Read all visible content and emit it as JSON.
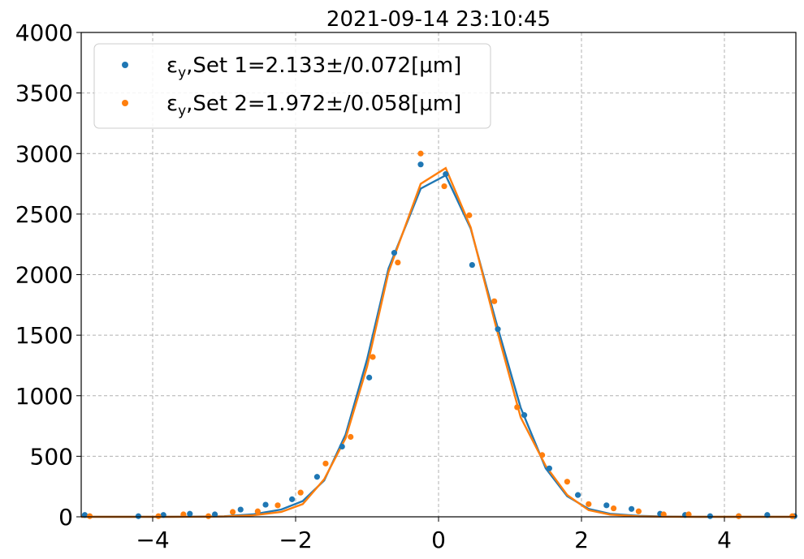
{
  "chart_data": {
    "type": "scatter",
    "title": "2021-09-14 23:10:45",
    "xlabel": "",
    "ylabel": "",
    "xlim": [
      -5,
      5
    ],
    "ylim": [
      0,
      4000
    ],
    "x_ticks": [
      -4,
      -2,
      0,
      2,
      4
    ],
    "x_tick_labels": [
      "−4",
      "−2",
      "0",
      "2",
      "4"
    ],
    "y_ticks": [
      0,
      500,
      1000,
      1500,
      2000,
      2500,
      3000,
      3500,
      4000
    ],
    "y_tick_labels": [
      "0",
      "500",
      "1000",
      "1500",
      "2000",
      "2500",
      "3000",
      "3500",
      "4000"
    ],
    "grid": true,
    "legend_position": "top-left",
    "series": [
      {
        "name": "εy,Set 1=2.133±/0.072[μm]",
        "legend_main": "ε",
        "legend_sub": "y",
        "legend_rest": ",Set 1=2.133±/0.072[μm]",
        "color": "#1f77b4",
        "points": [
          [
            -4.95,
            15
          ],
          [
            -4.2,
            5
          ],
          [
            -3.85,
            15
          ],
          [
            -3.48,
            25
          ],
          [
            -3.13,
            20
          ],
          [
            -2.77,
            60
          ],
          [
            -2.42,
            100
          ],
          [
            -2.05,
            145
          ],
          [
            -1.7,
            330
          ],
          [
            -1.35,
            580
          ],
          [
            -0.97,
            1150
          ],
          [
            -0.62,
            2180
          ],
          [
            -0.25,
            2910
          ],
          [
            0.1,
            2830
          ],
          [
            0.47,
            2080
          ],
          [
            0.83,
            1550
          ],
          [
            1.2,
            840
          ],
          [
            1.55,
            400
          ],
          [
            1.95,
            180
          ],
          [
            2.35,
            95
          ],
          [
            2.7,
            65
          ],
          [
            3.1,
            25
          ],
          [
            3.45,
            15
          ],
          [
            3.8,
            5
          ],
          [
            4.2,
            5
          ],
          [
            4.6,
            15
          ],
          [
            4.98,
            5
          ]
        ],
        "fit_x": [
          -5,
          -4.6,
          -4.2,
          -3.8,
          -3.4,
          -3.0,
          -2.6,
          -2.2,
          -1.9,
          -1.6,
          -1.3,
          -1.0,
          -0.7,
          -0.25,
          0.1,
          0.45,
          0.8,
          1.15,
          1.5,
          1.8,
          2.1,
          2.4,
          2.8,
          3.2,
          3.6,
          4.0,
          4.5,
          5
        ],
        "fit_y": [
          0,
          0,
          0,
          0,
          2,
          5,
          20,
          60,
          130,
          300,
          680,
          1300,
          2050,
          2710,
          2820,
          2380,
          1620,
          900,
          400,
          170,
          65,
          25,
          8,
          2,
          0,
          0,
          0,
          0
        ]
      },
      {
        "name": "εy,Set 2=1.972±/0.058[μm]",
        "legend_main": "ε",
        "legend_sub": "y",
        "legend_rest": ",Set 2=1.972±/0.058[μm]",
        "color": "#ff7f0e",
        "points": [
          [
            -4.88,
            5
          ],
          [
            -3.92,
            5
          ],
          [
            -3.57,
            20
          ],
          [
            -3.22,
            5
          ],
          [
            -2.88,
            40
          ],
          [
            -2.53,
            45
          ],
          [
            -2.25,
            95
          ],
          [
            -1.93,
            200
          ],
          [
            -1.58,
            440
          ],
          [
            -1.23,
            660
          ],
          [
            -0.92,
            1320
          ],
          [
            -0.57,
            2100
          ],
          [
            -0.25,
            3000
          ],
          [
            0.08,
            2730
          ],
          [
            0.43,
            2490
          ],
          [
            0.78,
            1780
          ],
          [
            1.1,
            905
          ],
          [
            1.45,
            510
          ],
          [
            1.8,
            290
          ],
          [
            2.1,
            105
          ],
          [
            2.45,
            70
          ],
          [
            2.8,
            45
          ],
          [
            3.15,
            20
          ],
          [
            3.5,
            20
          ],
          [
            4.2,
            5
          ],
          [
            4.95,
            5
          ]
        ],
        "fit_x": [
          -5,
          -4.6,
          -4.2,
          -3.8,
          -3.4,
          -3.0,
          -2.6,
          -2.2,
          -1.9,
          -1.6,
          -1.3,
          -1.0,
          -0.7,
          -0.25,
          0.1,
          0.45,
          0.8,
          1.15,
          1.5,
          1.8,
          2.1,
          2.4,
          2.8,
          3.2,
          3.6,
          4.0,
          4.5,
          5
        ],
        "fit_y": [
          0,
          0,
          0,
          0,
          1,
          3,
          12,
          40,
          105,
          310,
          650,
          1240,
          2020,
          2750,
          2880,
          2390,
          1580,
          820,
          420,
          180,
          55,
          18,
          4,
          1,
          0,
          0,
          0,
          0
        ]
      }
    ]
  }
}
